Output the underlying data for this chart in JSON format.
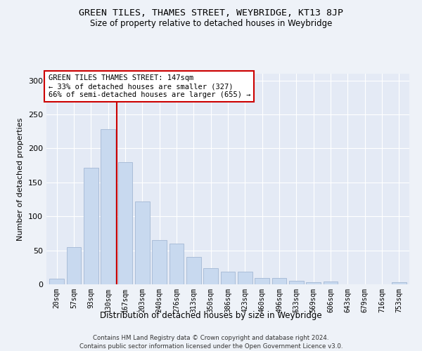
{
  "title": "GREEN TILES, THAMES STREET, WEYBRIDGE, KT13 8JP",
  "subtitle": "Size of property relative to detached houses in Weybridge",
  "xlabel": "Distribution of detached houses by size in Weybridge",
  "ylabel": "Number of detached properties",
  "categories": [
    "20sqm",
    "57sqm",
    "93sqm",
    "130sqm",
    "167sqm",
    "203sqm",
    "240sqm",
    "276sqm",
    "313sqm",
    "350sqm",
    "386sqm",
    "423sqm",
    "460sqm",
    "496sqm",
    "533sqm",
    "569sqm",
    "606sqm",
    "643sqm",
    "679sqm",
    "716sqm",
    "753sqm"
  ],
  "values": [
    8,
    55,
    172,
    228,
    180,
    122,
    65,
    60,
    40,
    24,
    19,
    19,
    9,
    9,
    5,
    3,
    4,
    0,
    0,
    0,
    3
  ],
  "bar_color": "#c8d9ef",
  "bar_edge_color": "#aabdd8",
  "vline_x": 3.5,
  "vline_color": "#cc0000",
  "annotation_text": "GREEN TILES THAMES STREET: 147sqm\n← 33% of detached houses are smaller (327)\n66% of semi-detached houses are larger (655) →",
  "annotation_box_color": "#ffffff",
  "annotation_box_edge": "#cc0000",
  "ylim": [
    0,
    310
  ],
  "yticks": [
    0,
    50,
    100,
    150,
    200,
    250,
    300
  ],
  "footer1": "Contains HM Land Registry data © Crown copyright and database right 2024.",
  "footer2": "Contains public sector information licensed under the Open Government Licence v3.0.",
  "bg_color": "#eef2f8",
  "plot_bg_color": "#e4eaf5"
}
